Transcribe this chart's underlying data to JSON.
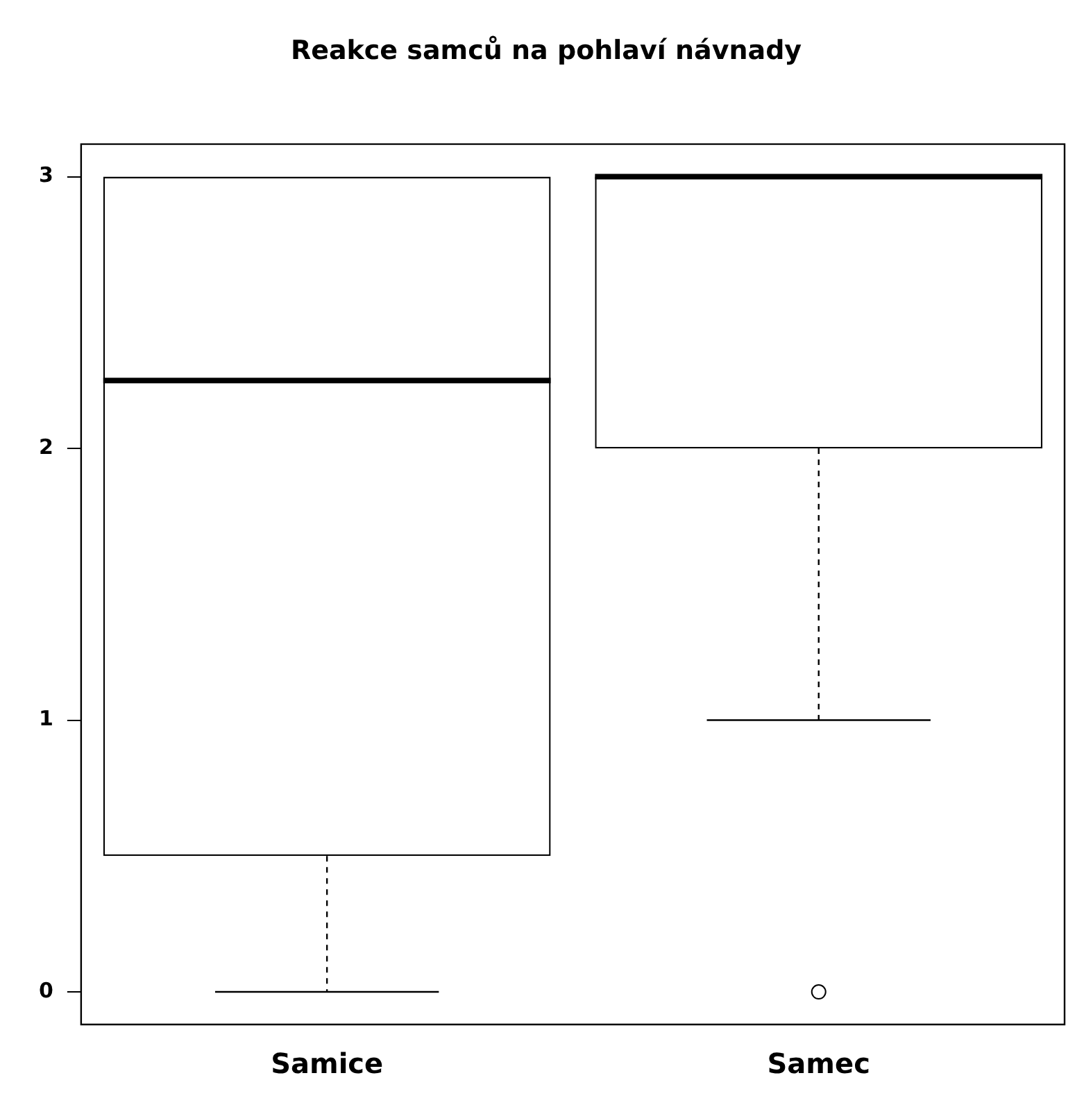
{
  "chart_data": {
    "type": "box",
    "title": "Reakce samců na pohlaví návnady",
    "categories": [
      "Samice",
      "Samec"
    ],
    "boxes": [
      {
        "low": 0,
        "q1": 0.5,
        "median": 2.25,
        "q3": 3,
        "high": 3
      },
      {
        "low": 1,
        "q1": 2,
        "median": 3,
        "q3": 3,
        "high": 3,
        "outliers": [
          0
        ]
      }
    ],
    "ylim": [
      -0.12,
      3.12
    ],
    "yticks": [
      0,
      1,
      2,
      3
    ],
    "grid": false,
    "legend": false
  }
}
